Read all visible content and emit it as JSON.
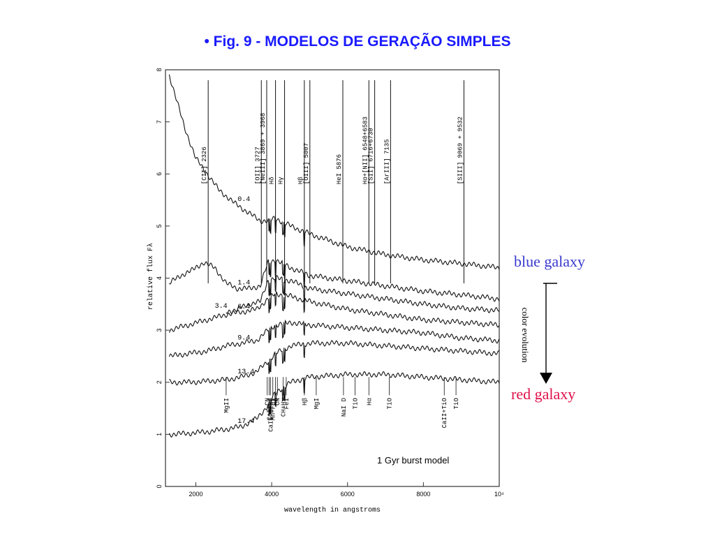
{
  "slide": {
    "title": "• Fig. 9  -  MODELOS DE GERAÇÃO SIMPLES",
    "title_color": "#1a1aff"
  },
  "side_labels": {
    "blue": "blue galaxy",
    "blue_color": "#3a3ad0",
    "red": "red galaxy",
    "red_color": "#e0104a",
    "evolution": "color evolution"
  },
  "chart_data": {
    "type": "line",
    "xlabel": "wavelength in angstroms",
    "ylabel": "relative flux Fλ",
    "xlim": [
      1200,
      10000
    ],
    "ylim": [
      0,
      8
    ],
    "x_ticks": [
      2000,
      4000,
      6000,
      8000,
      10000
    ],
    "x_tick_labels": [
      "2000",
      "4000",
      "6000",
      "8000",
      "10⁴"
    ],
    "y_ticks": [
      0,
      1,
      2,
      3,
      4,
      5,
      6,
      7,
      8
    ],
    "y_tick_labels": [
      "0",
      "1",
      "2",
      "3",
      "4",
      "5",
      "6",
      "7",
      "8"
    ],
    "annotation": "1 Gyr burst model",
    "series": [
      {
        "name": "0.4",
        "x": [
          1300,
          1500,
          1700,
          2000,
          2300,
          2600,
          3000,
          3400,
          3700,
          3900,
          4100,
          4500,
          5000,
          6000,
          7000,
          8000,
          9000,
          10000
        ],
        "y": [
          7.9,
          7.4,
          6.9,
          6.3,
          6.0,
          5.7,
          5.45,
          5.25,
          5.1,
          5.1,
          5.15,
          5.0,
          4.85,
          4.6,
          4.45,
          4.35,
          4.28,
          4.2
        ]
      },
      {
        "name": "1.4",
        "x": [
          1300,
          1600,
          1900,
          2200,
          2500,
          2800,
          3100,
          3400,
          3700,
          3900,
          4100,
          4500,
          5000,
          6000,
          7000,
          8000,
          9000,
          10000
        ],
        "y": [
          3.9,
          4.05,
          4.15,
          4.3,
          4.2,
          3.9,
          3.8,
          3.8,
          3.85,
          4.3,
          4.35,
          4.2,
          4.05,
          3.95,
          3.85,
          3.75,
          3.68,
          3.6
        ]
      },
      {
        "name": "3.4",
        "x": [
          2800,
          3100,
          3400,
          3700,
          3900,
          4100,
          4500,
          5000,
          6000,
          7000,
          8000,
          9000,
          10000
        ],
        "y": [
          3.35,
          3.4,
          3.5,
          3.55,
          3.95,
          4.0,
          3.95,
          3.8,
          3.7,
          3.6,
          3.5,
          3.42,
          3.38
        ]
      },
      {
        "name": "6.4",
        "x": [
          1300,
          1800,
          2300,
          2800,
          3200,
          3600,
          3900,
          4100,
          4500,
          5000,
          6000,
          7000,
          8000,
          9000,
          10000
        ],
        "y": [
          3.0,
          3.1,
          3.2,
          3.3,
          3.35,
          3.4,
          3.6,
          3.7,
          3.65,
          3.55,
          3.4,
          3.3,
          3.2,
          3.15,
          3.1
        ]
      },
      {
        "name": "9.4",
        "x": [
          1300,
          1800,
          2300,
          2800,
          3200,
          3600,
          3900,
          4100,
          4500,
          5000,
          6000,
          7000,
          8000,
          9000,
          10000
        ],
        "y": [
          2.5,
          2.55,
          2.6,
          2.7,
          2.75,
          2.8,
          3.0,
          3.1,
          3.15,
          3.1,
          3.05,
          3.0,
          2.95,
          2.85,
          2.8
        ]
      },
      {
        "name": "13.4",
        "x": [
          1300,
          1800,
          2300,
          2800,
          3200,
          3600,
          3900,
          4100,
          4500,
          5000,
          6000,
          7000,
          8000,
          9000,
          10000
        ],
        "y": [
          2.0,
          2.0,
          2.02,
          2.05,
          2.1,
          2.2,
          2.4,
          2.55,
          2.7,
          2.75,
          2.75,
          2.7,
          2.65,
          2.6,
          2.55
        ]
      },
      {
        "name": "17.4",
        "x": [
          1300,
          1800,
          2300,
          2800,
          3200,
          3600,
          3900,
          4100,
          4500,
          5000,
          6000,
          7000,
          8000,
          9000,
          10000
        ],
        "y": [
          1.0,
          1.02,
          1.05,
          1.1,
          1.15,
          1.3,
          1.55,
          1.8,
          2.0,
          2.1,
          2.15,
          2.15,
          2.1,
          2.05,
          2.0
        ]
      }
    ],
    "emission_lines": [
      {
        "label": "[CII] 2326",
        "x": 2326
      },
      {
        "label": "[OII] 3727",
        "x": 3727
      },
      {
        "label": "[NeIII] 3869 + 3968",
        "x": 3869
      },
      {
        "label": "Hδ",
        "x": 4101
      },
      {
        "label": "Hγ",
        "x": 4340
      },
      {
        "label": "Hβ",
        "x": 4861
      },
      {
        "label": "[OIII] 5007",
        "x": 5007
      },
      {
        "label": "HeI 5876",
        "x": 5876
      },
      {
        "label": "Hα+[NII] 6548+6583",
        "x": 6563
      },
      {
        "label": "[SII] 6716+6730",
        "x": 6716
      },
      {
        "label": "[ArIII] 7135",
        "x": 7135
      },
      {
        "label": "[SIII] 9069 + 9532",
        "x": 9069
      }
    ],
    "absorption_lines": [
      {
        "label": "MgII",
        "x": 2800
      },
      {
        "label": "CN",
        "x": 3883
      },
      {
        "label": "CaII K",
        "x": 3934
      },
      {
        "label": "CaII H+Hε",
        "x": 3968
      },
      {
        "label": "Mn+FeI",
        "x": 4030
      },
      {
        "label": "CN",
        "x": 4150
      },
      {
        "label": "Hδ",
        "x": 4101
      },
      {
        "label": "FeI",
        "x": 4383
      },
      {
        "label": "CH+Hγ",
        "x": 4300
      },
      {
        "label": "Hβ",
        "x": 4861
      },
      {
        "label": "MgI",
        "x": 5175
      },
      {
        "label": "NaI D",
        "x": 5893
      },
      {
        "label": "TiO",
        "x": 6200
      },
      {
        "label": "Hα",
        "x": 6563
      },
      {
        "label": "TiO",
        "x": 7100
      },
      {
        "label": "CaII+TiO",
        "x": 8550
      },
      {
        "label": "TiO",
        "x": 8860
      }
    ]
  }
}
